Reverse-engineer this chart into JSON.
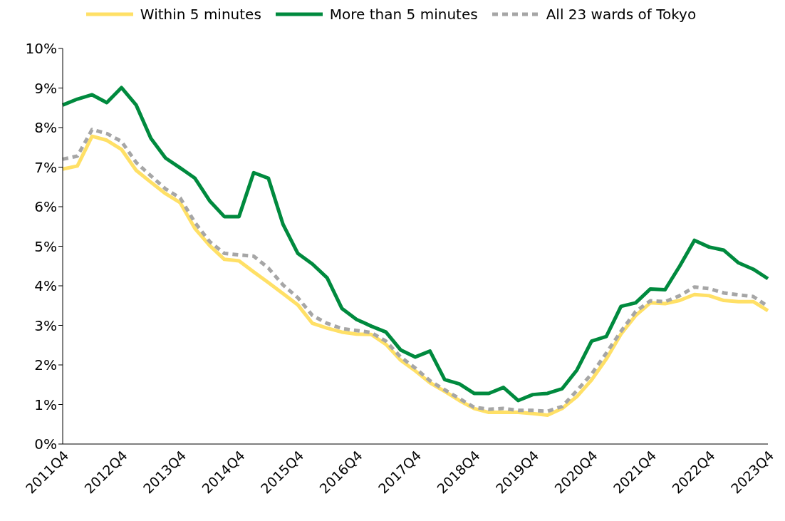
{
  "chart_data": {
    "type": "line",
    "categories": [
      "2011Q4",
      null,
      null,
      null,
      "2012Q4",
      null,
      null,
      null,
      "2013Q4",
      null,
      null,
      null,
      "2014Q4",
      null,
      null,
      null,
      "2015Q4",
      null,
      null,
      null,
      "2016Q4",
      null,
      null,
      null,
      "2017Q4",
      null,
      null,
      null,
      "2018Q4",
      null,
      null,
      null,
      "2019Q4",
      null,
      null,
      null,
      "2020Q4",
      null,
      null,
      null,
      "2021Q4",
      null,
      null,
      null,
      "2022Q4",
      null,
      null,
      null,
      "2023Q4"
    ],
    "series": [
      {
        "name": "Within 5 minutes",
        "color": "#ffe066",
        "line_style": "solid",
        "values": [
          6.95,
          7.03,
          7.78,
          7.68,
          7.45,
          6.92,
          6.62,
          6.33,
          6.1,
          5.45,
          5.02,
          4.67,
          4.63,
          4.35,
          4.08,
          3.8,
          3.52,
          3.05,
          2.93,
          2.83,
          2.78,
          2.77,
          2.52,
          2.12,
          1.85,
          1.55,
          1.33,
          1.1,
          0.9,
          0.8,
          0.8,
          0.8,
          0.77,
          0.73,
          0.9,
          1.2,
          1.62,
          2.15,
          2.78,
          3.25,
          3.57,
          3.55,
          3.63,
          3.78,
          3.75,
          3.63,
          3.6,
          3.6,
          3.37
        ]
      },
      {
        "name": "More than 5 minutes",
        "color": "#008a3e",
        "line_style": "solid",
        "values": [
          8.57,
          8.72,
          8.83,
          8.63,
          9.01,
          8.57,
          7.73,
          7.23,
          6.98,
          6.72,
          6.15,
          5.75,
          5.75,
          6.86,
          6.72,
          5.55,
          4.82,
          4.55,
          4.2,
          3.43,
          3.15,
          2.98,
          2.83,
          2.38,
          2.2,
          2.35,
          1.63,
          1.52,
          1.28,
          1.28,
          1.43,
          1.1,
          1.25,
          1.28,
          1.4,
          1.87,
          2.6,
          2.72,
          3.48,
          3.57,
          3.92,
          3.9,
          4.5,
          5.15,
          4.98,
          4.9,
          4.58,
          4.42,
          4.18
        ]
      },
      {
        "name": "All 23 wards of Tokyo",
        "color": "#a6a6a6",
        "line_style": "dashed",
        "values": [
          7.2,
          7.28,
          7.95,
          7.85,
          7.65,
          7.12,
          6.78,
          6.45,
          6.22,
          5.6,
          5.12,
          4.82,
          4.78,
          4.75,
          4.45,
          4.02,
          3.7,
          3.25,
          3.05,
          2.92,
          2.87,
          2.82,
          2.6,
          2.2,
          1.92,
          1.6,
          1.37,
          1.15,
          0.93,
          0.88,
          0.9,
          0.85,
          0.85,
          0.83,
          0.95,
          1.35,
          1.77,
          2.3,
          2.85,
          3.35,
          3.62,
          3.6,
          3.75,
          3.97,
          3.93,
          3.82,
          3.77,
          3.73,
          3.48
        ]
      }
    ],
    "ylim": [
      0,
      10
    ],
    "yticks": [
      {
        "value": 0,
        "label": "0%"
      },
      {
        "value": 1,
        "label": "1%"
      },
      {
        "value": 2,
        "label": "2%"
      },
      {
        "value": 3,
        "label": "3%"
      },
      {
        "value": 4,
        "label": "4%"
      },
      {
        "value": 5,
        "label": "5%"
      },
      {
        "value": 6,
        "label": "6%"
      },
      {
        "value": 7,
        "label": "7%"
      },
      {
        "value": 8,
        "label": "8%"
      },
      {
        "value": 9,
        "label": "9%"
      },
      {
        "value": 10,
        "label": "10%"
      }
    ],
    "grid": false,
    "legend": "top",
    "marker": "none"
  }
}
